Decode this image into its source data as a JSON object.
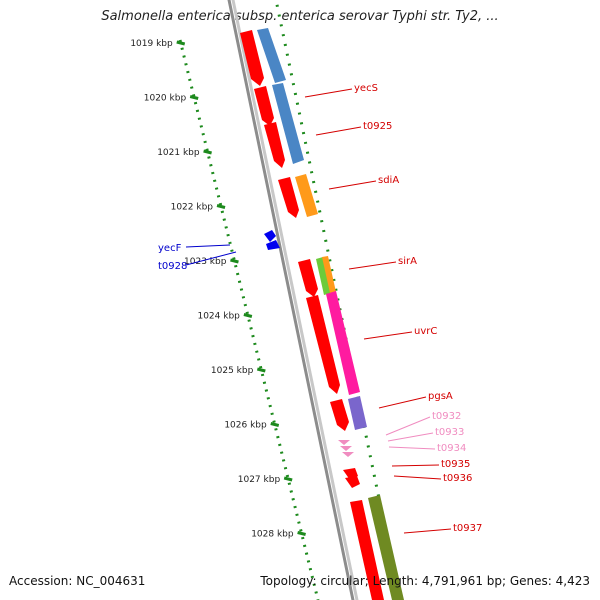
{
  "title": "Salmonella enterica subsp. enterica serovar Typhi str. Ty2, ...",
  "footer": {
    "accession": "Accession: NC_004631",
    "summary": "Topology: circular; Length: 4,791,961 bp; Genes: 4,423"
  },
  "colors": {
    "backbone": "#8c8c8c",
    "ticks": "#1d8a1d",
    "cds_red": "#ff0000",
    "blue_gene": "#0000ee",
    "cog_blue": "#4a86c5",
    "cog_orange": "#ff9a1a",
    "cog_green": "#6ccb3a",
    "cog_magenta": "#ff1ba0",
    "cog_purple": "#7a66cc",
    "cog_olive": "#6f8a22",
    "label_red": "#d40000",
    "label_pink": "#f08cc0",
    "label_blue": "#0000cc"
  },
  "ticks": [
    "1019 kbp",
    "1020 kbp",
    "1021 kbp",
    "1022 kbp",
    "1023 kbp",
    "1024 kbp",
    "1025 kbp",
    "1026 kbp",
    "1027 kbp",
    "1028 kbp"
  ],
  "genes_right": [
    {
      "label": "yecS",
      "color": "label_red"
    },
    {
      "label": "t0925",
      "color": "label_red"
    },
    {
      "label": "sdiA",
      "color": "label_red"
    },
    {
      "label": "sirA",
      "color": "label_red"
    },
    {
      "label": "uvrC",
      "color": "label_red"
    },
    {
      "label": "pgsA",
      "color": "label_red"
    },
    {
      "label": "t0932",
      "color": "label_pink"
    },
    {
      "label": "t0933",
      "color": "label_pink"
    },
    {
      "label": "t0934",
      "color": "label_pink"
    },
    {
      "label": "t0935",
      "color": "label_red"
    },
    {
      "label": "t0936",
      "color": "label_red"
    },
    {
      "label": "t0937",
      "color": "label_red"
    }
  ],
  "genes_left": [
    {
      "label": "yecF",
      "color": "label_blue"
    },
    {
      "label": "t0928",
      "color": "label_blue"
    }
  ]
}
